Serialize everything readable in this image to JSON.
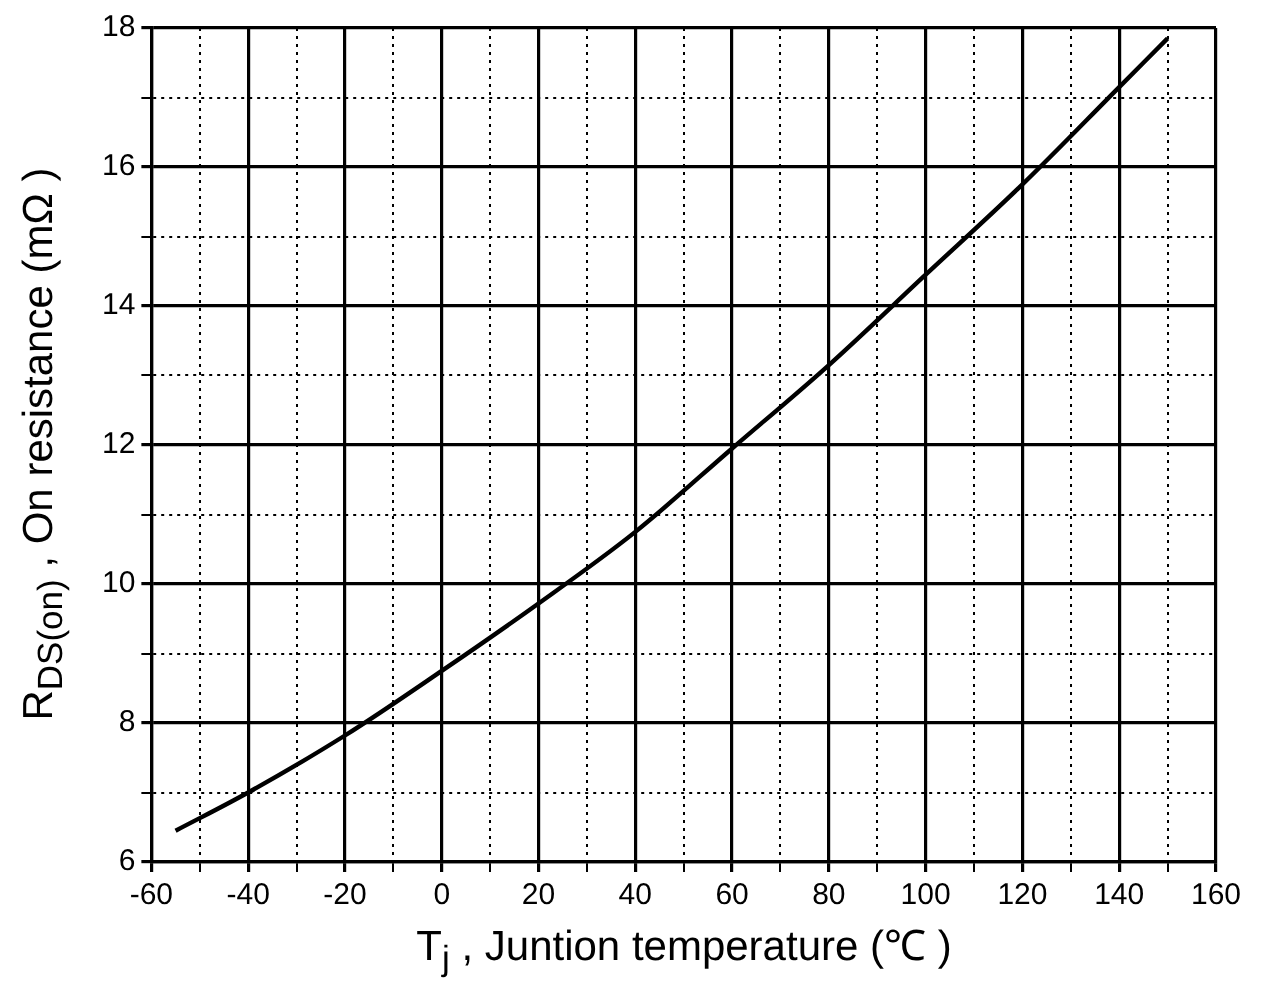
{
  "chart_data": {
    "type": "line",
    "xlabel": "T$_{j}$ , Juntion temperature (℃ )",
    "ylabel": "R$_{DS(on)}$ , On resistance (mΩ )",
    "x": [
      -55,
      -40,
      -20,
      0,
      20,
      40,
      60,
      80,
      100,
      120,
      140,
      150
    ],
    "series": [
      {
        "color": "#000000",
        "values": [
          6.45,
          7.0,
          7.82,
          8.75,
          9.72,
          10.75,
          11.95,
          13.15,
          14.45,
          15.75,
          17.15,
          17.85
        ]
      }
    ],
    "xlim": [
      -60,
      160
    ],
    "xticks": [
      -60,
      {
        "value": -50,
        "label": null
      },
      -40,
      {
        "value": -30,
        "label": null
      },
      -20,
      {
        "value": -10,
        "label": null
      },
      0,
      {
        "value": 10,
        "label": null
      },
      20,
      {
        "value": 30,
        "label": null
      },
      40,
      {
        "value": 50,
        "label": null
      },
      60,
      {
        "value": 70,
        "label": null
      },
      80,
      {
        "value": 90,
        "label": null
      },
      100,
      {
        "value": 110,
        "label": null
      },
      120,
      {
        "value": 130,
        "label": null
      },
      140,
      {
        "value": 150,
        "label": null
      },
      160
    ],
    "ylim": [
      6,
      18
    ],
    "yticks": [
      6,
      {
        "value": 7,
        "label": null
      },
      8,
      {
        "value": 9,
        "label": null
      },
      10,
      {
        "value": 11,
        "label": null
      },
      12,
      {
        "value": 13,
        "label": null
      },
      14,
      {
        "value": 15,
        "label": null
      },
      16,
      {
        "value": 17,
        "label": null
      },
      18
    ],
    "grid": true,
    "legend": false,
    "marker": "none",
    "line_style": "solid"
  }
}
